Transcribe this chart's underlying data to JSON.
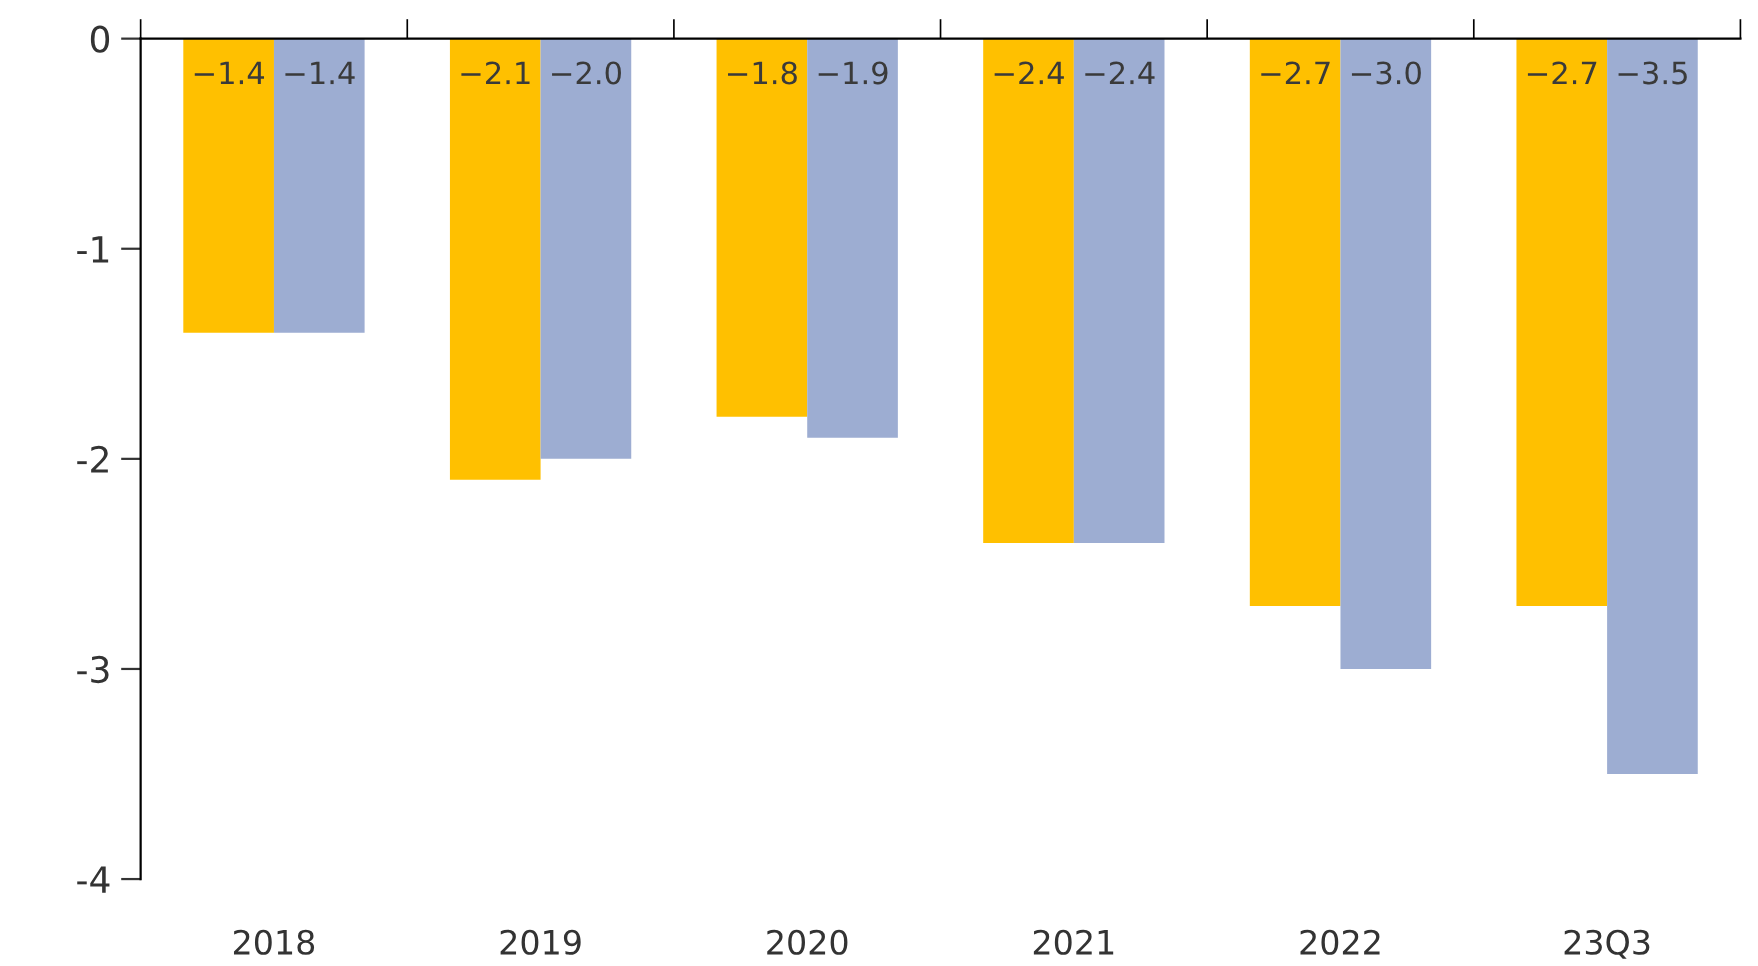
{
  "chart_data": {
    "type": "bar",
    "categories": [
      "2018",
      "2019",
      "2020",
      "2021",
      "2022",
      "23Q3"
    ],
    "series": [
      {
        "color": "#ffc000",
        "values": [
          -1.4,
          -2.1,
          -1.8,
          -2.4,
          -2.7,
          -2.7
        ],
        "value_labels": [
          "−1.4",
          "−2.1",
          "−1.8",
          "−2.4",
          "−2.7",
          "−2.7"
        ]
      },
      {
        "color": "#9dadd2",
        "values": [
          -1.4,
          -2.0,
          -1.9,
          -2.4,
          -3.0,
          -3.5
        ],
        "value_labels": [
          "−1.4",
          "−2.0",
          "−1.9",
          "−2.4",
          "−3.0",
          "−3.5"
        ]
      }
    ],
    "ylim": [
      -4,
      0
    ],
    "yticks": [
      {
        "value": -4,
        "label": "-4"
      },
      {
        "value": -3,
        "label": "-3"
      },
      {
        "value": -2,
        "label": "-2"
      },
      {
        "value": -1,
        "label": "-1"
      },
      0
    ],
    "grid": false,
    "legend": false
  }
}
